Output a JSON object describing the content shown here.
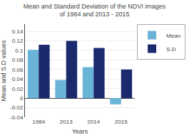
{
  "chart_data": {
    "type": "bar",
    "title": "Mean and Standard Deviation of the NDVI images\nof 1984 and 2013 - 2015",
    "xlabel": "Years",
    "ylabel": "Mean and S.D values",
    "categories": [
      "1984",
      "2013",
      "2014",
      "2015"
    ],
    "series": [
      {
        "name": "Mean",
        "color": "#6ab4d8",
        "values": [
          0.101,
          0.038,
          0.065,
          -0.013
        ]
      },
      {
        "name": "S.D",
        "color": "#1a2a6c",
        "values": [
          0.112,
          0.12,
          0.105,
          0.06
        ]
      }
    ],
    "ylim": [
      -0.04,
      0.155
    ],
    "yticks": [
      -0.04,
      -0.02,
      0,
      0.02,
      0.04,
      0.06,
      0.08,
      0.1,
      0.12,
      0.14
    ],
    "grid": true,
    "legend": "upper right"
  }
}
